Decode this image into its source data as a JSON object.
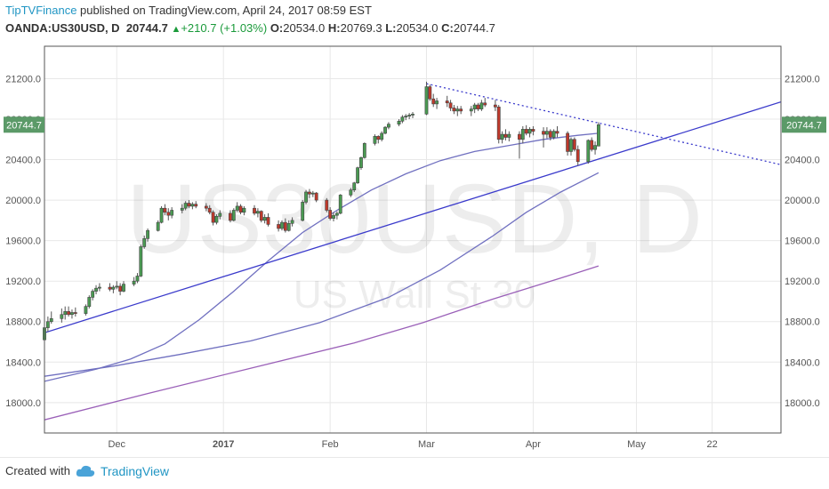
{
  "header": {
    "author": "TipTVFinance",
    "published_text": " published on TradingView.com, April 24, 2017 08:59 EST",
    "symbol": "OANDA:US30USD, D",
    "last": "20744.7",
    "change": "+210.7 (+1.03%)",
    "o_label": "O:",
    "o": "20534.0",
    "h_label": "H:",
    "h": "20769.3",
    "l_label": "L:",
    "l": "20534.0",
    "c_label": "C:",
    "c": "20744.7"
  },
  "watermark": {
    "main": "US30USD, D",
    "sub": "US Wall St 30"
  },
  "footer": {
    "created_with": "Created with",
    "brand": "TradingView"
  },
  "colors": {
    "up": "#4a9a52",
    "down": "#c0392b",
    "price_badge": "#5b9a68",
    "trend": "#3a3acb",
    "ma_fast": "#7070c0",
    "ma_slow": "#9a60b8",
    "grid": "#e8e8e8"
  },
  "chart_data": {
    "type": "candlestick",
    "price_label": "20744.7",
    "y_ticks": [
      "21200.0",
      "20800.0",
      "20400.0",
      "20000.0",
      "19600.0",
      "19200.0",
      "18800.0",
      "18400.0",
      "18000.0"
    ],
    "y_tick_values": [
      21200,
      20800,
      20400,
      20000,
      19600,
      19200,
      18800,
      18400,
      18000
    ],
    "ylim": [
      17700,
      21520
    ],
    "x_ticks": [
      "Dec",
      "2017",
      "Feb",
      "Mar",
      "Apr",
      "May",
      "22"
    ],
    "x_tick_days": [
      21,
      52,
      83,
      111,
      142,
      172,
      194
    ],
    "xlim": [
      0,
      214
    ],
    "grid": true,
    "candles": [
      {
        "d": 0,
        "o": 18620,
        "h": 18760,
        "l": 18590,
        "c": 18740
      },
      {
        "d": 1,
        "o": 18740,
        "h": 18850,
        "l": 18700,
        "c": 18800
      },
      {
        "d": 2,
        "o": 18800,
        "h": 18900,
        "l": 18780,
        "c": 18830
      },
      {
        "d": 5,
        "o": 18830,
        "h": 18930,
        "l": 18790,
        "c": 18870
      },
      {
        "d": 6,
        "o": 18870,
        "h": 18950,
        "l": 18820,
        "c": 18900
      },
      {
        "d": 7,
        "o": 18900,
        "h": 18950,
        "l": 18850,
        "c": 18870
      },
      {
        "d": 8,
        "o": 18870,
        "h": 18920,
        "l": 18830,
        "c": 18890
      },
      {
        "d": 9,
        "o": 18890,
        "h": 18940,
        "l": 18850,
        "c": 18880
      },
      {
        "d": 12,
        "o": 18880,
        "h": 18970,
        "l": 18860,
        "c": 18950
      },
      {
        "d": 13,
        "o": 18950,
        "h": 19060,
        "l": 18930,
        "c": 19040
      },
      {
        "d": 14,
        "o": 19040,
        "h": 19120,
        "l": 19010,
        "c": 19100
      },
      {
        "d": 15,
        "o": 19100,
        "h": 19160,
        "l": 19070,
        "c": 19130
      },
      {
        "d": 16,
        "o": 19130,
        "h": 19180,
        "l": 19100,
        "c": 19140
      },
      {
        "d": 19,
        "o": 19140,
        "h": 19180,
        "l": 19100,
        "c": 19120
      },
      {
        "d": 20,
        "o": 19120,
        "h": 19160,
        "l": 19080,
        "c": 19140
      },
      {
        "d": 21,
        "o": 19140,
        "h": 19200,
        "l": 19120,
        "c": 19150
      },
      {
        "d": 22,
        "o": 19150,
        "h": 19180,
        "l": 19060,
        "c": 19100
      },
      {
        "d": 23,
        "o": 19100,
        "h": 19200,
        "l": 19090,
        "c": 19170
      },
      {
        "d": 26,
        "o": 19170,
        "h": 19240,
        "l": 19150,
        "c": 19200
      },
      {
        "d": 27,
        "o": 19200,
        "h": 19280,
        "l": 19180,
        "c": 19250
      },
      {
        "d": 28,
        "o": 19250,
        "h": 19560,
        "l": 19240,
        "c": 19540
      },
      {
        "d": 29,
        "o": 19540,
        "h": 19650,
        "l": 19520,
        "c": 19620
      },
      {
        "d": 30,
        "o": 19620,
        "h": 19720,
        "l": 19590,
        "c": 19700
      },
      {
        "d": 33,
        "o": 19700,
        "h": 19800,
        "l": 19690,
        "c": 19780
      },
      {
        "d": 34,
        "o": 19780,
        "h": 19940,
        "l": 19770,
        "c": 19920
      },
      {
        "d": 35,
        "o": 19920,
        "h": 19960,
        "l": 19850,
        "c": 19880
      },
      {
        "d": 36,
        "o": 19880,
        "h": 19920,
        "l": 19800,
        "c": 19850
      },
      {
        "d": 37,
        "o": 19850,
        "h": 19930,
        "l": 19820,
        "c": 19900
      },
      {
        "d": 40,
        "o": 19900,
        "h": 19960,
        "l": 19870,
        "c": 19920
      },
      {
        "d": 41,
        "o": 19920,
        "h": 19990,
        "l": 19900,
        "c": 19970
      },
      {
        "d": 42,
        "o": 19970,
        "h": 20000,
        "l": 19920,
        "c": 19940
      },
      {
        "d": 43,
        "o": 19940,
        "h": 19980,
        "l": 19910,
        "c": 19960
      },
      {
        "d": 44,
        "o": 19960,
        "h": 19990,
        "l": 19920,
        "c": 19940
      },
      {
        "d": 47,
        "o": 19940,
        "h": 19970,
        "l": 19890,
        "c": 19920
      },
      {
        "d": 48,
        "o": 19920,
        "h": 19950,
        "l": 19860,
        "c": 19880
      },
      {
        "d": 49,
        "o": 19880,
        "h": 19900,
        "l": 19750,
        "c": 19780
      },
      {
        "d": 50,
        "o": 19780,
        "h": 19860,
        "l": 19760,
        "c": 19840
      },
      {
        "d": 51,
        "o": 19840,
        "h": 19900,
        "l": 19810,
        "c": 19870
      },
      {
        "d": 54,
        "o": 19870,
        "h": 19900,
        "l": 19780,
        "c": 19800
      },
      {
        "d": 55,
        "o": 19800,
        "h": 19920,
        "l": 19790,
        "c": 19900
      },
      {
        "d": 56,
        "o": 19900,
        "h": 19980,
        "l": 19880,
        "c": 19940
      },
      {
        "d": 57,
        "o": 19940,
        "h": 19960,
        "l": 19860,
        "c": 19880
      },
      {
        "d": 58,
        "o": 19880,
        "h": 19940,
        "l": 19850,
        "c": 19920
      },
      {
        "d": 61,
        "o": 19920,
        "h": 19950,
        "l": 19850,
        "c": 19870
      },
      {
        "d": 62,
        "o": 19870,
        "h": 19920,
        "l": 19830,
        "c": 19890
      },
      {
        "d": 63,
        "o": 19890,
        "h": 19900,
        "l": 19780,
        "c": 19800
      },
      {
        "d": 64,
        "o": 19800,
        "h": 19860,
        "l": 19770,
        "c": 19830
      },
      {
        "d": 65,
        "o": 19830,
        "h": 19870,
        "l": 19740,
        "c": 19760
      },
      {
        "d": 68,
        "o": 19760,
        "h": 19800,
        "l": 19690,
        "c": 19720
      },
      {
        "d": 69,
        "o": 19720,
        "h": 19800,
        "l": 19700,
        "c": 19780
      },
      {
        "d": 70,
        "o": 19780,
        "h": 19820,
        "l": 19680,
        "c": 19700
      },
      {
        "d": 71,
        "o": 19700,
        "h": 19800,
        "l": 19690,
        "c": 19770
      },
      {
        "d": 72,
        "o": 19770,
        "h": 19830,
        "l": 19740,
        "c": 19800
      },
      {
        "d": 75,
        "o": 19800,
        "h": 20000,
        "l": 19790,
        "c": 19980
      },
      {
        "d": 76,
        "o": 19980,
        "h": 20100,
        "l": 19960,
        "c": 20080
      },
      {
        "d": 77,
        "o": 20080,
        "h": 20110,
        "l": 20020,
        "c": 20060
      },
      {
        "d": 78,
        "o": 20060,
        "h": 20090,
        "l": 20030,
        "c": 20070
      },
      {
        "d": 79,
        "o": 20070,
        "h": 20080,
        "l": 19980,
        "c": 20000
      },
      {
        "d": 82,
        "o": 20000,
        "h": 20020,
        "l": 19880,
        "c": 19900
      },
      {
        "d": 83,
        "o": 19900,
        "h": 19930,
        "l": 19800,
        "c": 19820
      },
      {
        "d": 84,
        "o": 19820,
        "h": 19880,
        "l": 19790,
        "c": 19850
      },
      {
        "d": 85,
        "o": 19850,
        "h": 19890,
        "l": 19810,
        "c": 19870
      },
      {
        "d": 86,
        "o": 19870,
        "h": 20060,
        "l": 19860,
        "c": 20050
      },
      {
        "d": 89,
        "o": 20050,
        "h": 20120,
        "l": 20030,
        "c": 20100
      },
      {
        "d": 90,
        "o": 20100,
        "h": 20180,
        "l": 20080,
        "c": 20170
      },
      {
        "d": 91,
        "o": 20170,
        "h": 20330,
        "l": 20160,
        "c": 20320
      },
      {
        "d": 92,
        "o": 20320,
        "h": 20430,
        "l": 20300,
        "c": 20420
      },
      {
        "d": 93,
        "o": 20420,
        "h": 20570,
        "l": 20410,
        "c": 20560
      },
      {
        "d": 96,
        "o": 20560,
        "h": 20650,
        "l": 20540,
        "c": 20630
      },
      {
        "d": 97,
        "o": 20630,
        "h": 20640,
        "l": 20560,
        "c": 20600
      },
      {
        "d": 98,
        "o": 20600,
        "h": 20680,
        "l": 20580,
        "c": 20660
      },
      {
        "d": 99,
        "o": 20660,
        "h": 20730,
        "l": 20650,
        "c": 20720
      },
      {
        "d": 100,
        "o": 20720,
        "h": 20770,
        "l": 20700,
        "c": 20750
      },
      {
        "d": 103,
        "o": 20750,
        "h": 20800,
        "l": 20730,
        "c": 20780
      },
      {
        "d": 104,
        "o": 20780,
        "h": 20840,
        "l": 20760,
        "c": 20820
      },
      {
        "d": 105,
        "o": 20820,
        "h": 20850,
        "l": 20790,
        "c": 20830
      },
      {
        "d": 106,
        "o": 20830,
        "h": 20860,
        "l": 20800,
        "c": 20840
      },
      {
        "d": 107,
        "o": 20840,
        "h": 20870,
        "l": 20810,
        "c": 20850
      },
      {
        "d": 111,
        "o": 20850,
        "h": 21170,
        "l": 20840,
        "c": 21120
      },
      {
        "d": 112,
        "o": 21120,
        "h": 21140,
        "l": 20980,
        "c": 21000
      },
      {
        "d": 113,
        "o": 21000,
        "h": 21050,
        "l": 20920,
        "c": 20950
      },
      {
        "d": 114,
        "o": 20950,
        "h": 21010,
        "l": 20900,
        "c": 20980
      },
      {
        "d": 117,
        "o": 20980,
        "h": 21030,
        "l": 20920,
        "c": 20960
      },
      {
        "d": 118,
        "o": 20960,
        "h": 20990,
        "l": 20880,
        "c": 20910
      },
      {
        "d": 119,
        "o": 20910,
        "h": 20940,
        "l": 20850,
        "c": 20880
      },
      {
        "d": 120,
        "o": 20880,
        "h": 20930,
        "l": 20830,
        "c": 20900
      },
      {
        "d": 121,
        "o": 20900,
        "h": 20930,
        "l": 20850,
        "c": 20880
      },
      {
        "d": 124,
        "o": 20880,
        "h": 20930,
        "l": 20830,
        "c": 20900
      },
      {
        "d": 125,
        "o": 20900,
        "h": 20960,
        "l": 20860,
        "c": 20940
      },
      {
        "d": 126,
        "o": 20940,
        "h": 20960,
        "l": 20880,
        "c": 20900
      },
      {
        "d": 127,
        "o": 20900,
        "h": 20990,
        "l": 20880,
        "c": 20960
      },
      {
        "d": 128,
        "o": 20960,
        "h": 21010,
        "l": 20920,
        "c": 20940
      },
      {
        "d": 131,
        "o": 20940,
        "h": 20990,
        "l": 20880,
        "c": 20920
      },
      {
        "d": 132,
        "o": 20920,
        "h": 20940,
        "l": 20560,
        "c": 20600
      },
      {
        "d": 133,
        "o": 20600,
        "h": 20680,
        "l": 20560,
        "c": 20650
      },
      {
        "d": 134,
        "o": 20650,
        "h": 20700,
        "l": 20590,
        "c": 20620
      },
      {
        "d": 135,
        "o": 20620,
        "h": 20680,
        "l": 20580,
        "c": 20650
      },
      {
        "d": 138,
        "o": 20650,
        "h": 20680,
        "l": 20410,
        "c": 20600
      },
      {
        "d": 139,
        "o": 20600,
        "h": 20730,
        "l": 20560,
        "c": 20700
      },
      {
        "d": 140,
        "o": 20700,
        "h": 20740,
        "l": 20640,
        "c": 20660
      },
      {
        "d": 141,
        "o": 20660,
        "h": 20720,
        "l": 20620,
        "c": 20700
      },
      {
        "d": 142,
        "o": 20700,
        "h": 20730,
        "l": 20640,
        "c": 20680
      },
      {
        "d": 145,
        "o": 20680,
        "h": 20720,
        "l": 20520,
        "c": 20650
      },
      {
        "d": 146,
        "o": 20650,
        "h": 20720,
        "l": 20610,
        "c": 20680
      },
      {
        "d": 147,
        "o": 20680,
        "h": 20700,
        "l": 20590,
        "c": 20620
      },
      {
        "d": 148,
        "o": 20620,
        "h": 20700,
        "l": 20600,
        "c": 20680
      },
      {
        "d": 149,
        "o": 20680,
        "h": 20730,
        "l": 20620,
        "c": 20660
      },
      {
        "d": 152,
        "o": 20660,
        "h": 20680,
        "l": 20440,
        "c": 20480
      },
      {
        "d": 153,
        "o": 20480,
        "h": 20620,
        "l": 20440,
        "c": 20600
      },
      {
        "d": 154,
        "o": 20600,
        "h": 20620,
        "l": 20480,
        "c": 20500
      },
      {
        "d": 155,
        "o": 20500,
        "h": 20540,
        "l": 20340,
        "c": 20380
      },
      {
        "d": 158,
        "o": 20380,
        "h": 20600,
        "l": 20360,
        "c": 20590
      },
      {
        "d": 159,
        "o": 20590,
        "h": 20620,
        "l": 20480,
        "c": 20500
      },
      {
        "d": 160,
        "o": 20500,
        "h": 20580,
        "l": 20450,
        "c": 20540
      },
      {
        "d": 161,
        "o": 20534,
        "h": 20769.3,
        "l": 20534,
        "c": 20744.7
      }
    ],
    "trendlines": [
      {
        "name": "",
        "style": "solid",
        "from": [
          0,
          18690
        ],
        "to": [
          214,
          20970
        ]
      },
      {
        "name": "",
        "style": "dotted",
        "from": [
          111,
          21150
        ],
        "to": [
          214,
          20350
        ]
      }
    ],
    "moving_averages": [
      {
        "name": "",
        "color_key": "ma_fast",
        "points": [
          [
            0,
            18210
          ],
          [
            15,
            18330
          ],
          [
            25,
            18430
          ],
          [
            35,
            18580
          ],
          [
            45,
            18820
          ],
          [
            55,
            19100
          ],
          [
            65,
            19400
          ],
          [
            75,
            19680
          ],
          [
            85,
            19900
          ],
          [
            95,
            20100
          ],
          [
            105,
            20260
          ],
          [
            115,
            20390
          ],
          [
            125,
            20480
          ],
          [
            135,
            20540
          ],
          [
            145,
            20600
          ],
          [
            155,
            20640
          ],
          [
            161,
            20660
          ]
        ]
      },
      {
        "name": "",
        "color_key": "ma_fast",
        "points": [
          [
            0,
            18260
          ],
          [
            20,
            18360
          ],
          [
            40,
            18480
          ],
          [
            60,
            18610
          ],
          [
            80,
            18790
          ],
          [
            100,
            19040
          ],
          [
            115,
            19310
          ],
          [
            130,
            19640
          ],
          [
            140,
            19880
          ],
          [
            150,
            20080
          ],
          [
            161,
            20270
          ]
        ]
      },
      {
        "name": "",
        "color_key": "ma_slow",
        "points": [
          [
            0,
            17830
          ],
          [
            30,
            18090
          ],
          [
            60,
            18340
          ],
          [
            90,
            18590
          ],
          [
            110,
            18790
          ],
          [
            130,
            19020
          ],
          [
            150,
            19230
          ],
          [
            161,
            19350
          ]
        ]
      }
    ]
  }
}
